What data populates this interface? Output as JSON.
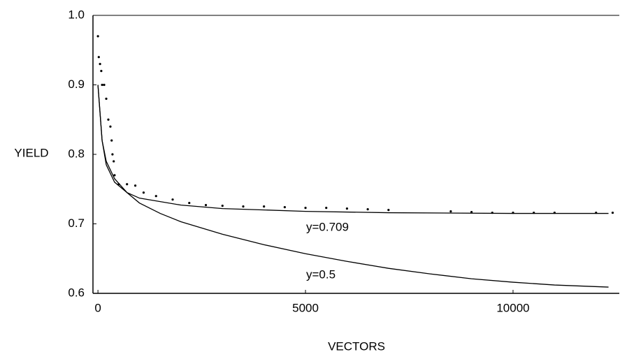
{
  "chart_data": {
    "type": "line",
    "xlabel": "VECTORS",
    "ylabel": "YIELD",
    "xlim": [
      -120,
      12560
    ],
    "xticks": [
      0,
      5000,
      10000
    ],
    "ylim": [
      0.6,
      1.0
    ],
    "yticks": [
      0.6,
      0.7,
      0.8,
      0.9,
      {
        "value": 1.0,
        "label": "1.0"
      }
    ],
    "annotations": [
      "y=0.709",
      "y=0.5"
    ],
    "series": [
      {
        "color": "#000000",
        "marker": "dot",
        "x": [
          0,
          20,
          50,
          80,
          100,
          150,
          200,
          250,
          300,
          330,
          350,
          380,
          400,
          500,
          700,
          900,
          1100,
          1400,
          1800,
          2200,
          2600,
          3000,
          3500,
          4000,
          4500,
          5000,
          5500,
          6000,
          6500,
          7000,
          8500,
          9000,
          9500,
          10000,
          10500,
          11000,
          12000,
          12400
        ],
        "values": [
          0.97,
          0.94,
          0.93,
          0.92,
          0.9,
          0.9,
          0.88,
          0.85,
          0.84,
          0.82,
          0.8,
          0.79,
          0.77,
          0.757,
          0.757,
          0.755,
          0.745,
          0.74,
          0.735,
          0.73,
          0.727,
          0.726,
          0.725,
          0.725,
          0.724,
          0.723,
          0.723,
          0.722,
          0.721,
          0.72,
          0.718,
          0.717,
          0.716,
          0.716,
          0.716,
          0.716,
          0.716,
          0.716
        ]
      },
      {
        "color": "#000000",
        "marker": "line",
        "x": [
          0,
          100,
          200,
          400,
          700,
          1000,
          2000,
          3000,
          5000,
          7000,
          10000,
          12300
        ],
        "values": [
          0.9,
          0.82,
          0.785,
          0.76,
          0.745,
          0.737,
          0.727,
          0.722,
          0.718,
          0.716,
          0.715,
          0.715
        ]
      },
      {
        "color": "#000000",
        "marker": "line",
        "x": [
          0,
          100,
          200,
          400,
          700,
          1000,
          1500,
          2000,
          3000,
          4000,
          5000,
          6000,
          7000,
          8000,
          9000,
          10000,
          11000,
          12300
        ],
        "values": [
          0.9,
          0.82,
          0.79,
          0.765,
          0.745,
          0.73,
          0.715,
          0.703,
          0.685,
          0.67,
          0.657,
          0.646,
          0.636,
          0.628,
          0.621,
          0.616,
          0.612,
          0.609
        ]
      }
    ]
  }
}
